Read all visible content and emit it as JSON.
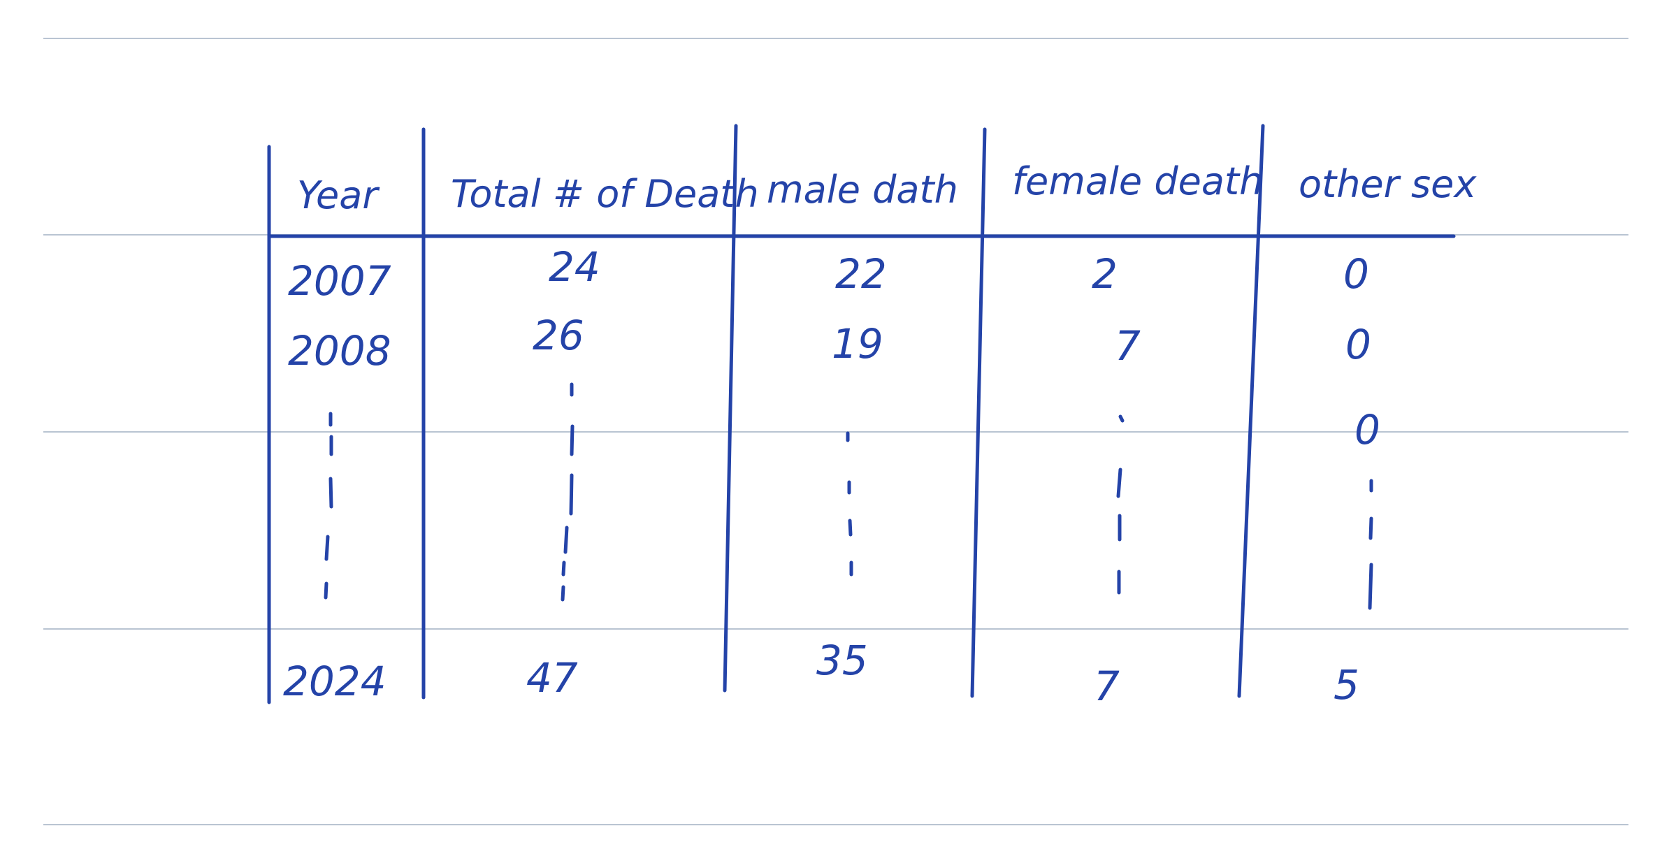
{
  "table": {
    "headers": [
      "Year",
      "Total # of Death",
      "male dath",
      "female death",
      "other sex"
    ],
    "rows": [
      [
        "2007",
        "24",
        "22",
        "2",
        "0"
      ],
      [
        "2008",
        "26",
        "19",
        "7",
        "0"
      ],
      [
        "",
        "",
        "",
        "",
        "0"
      ],
      [
        "2024",
        "47",
        "35",
        "7",
        "5"
      ]
    ]
  },
  "colors": {
    "ink": "#2443a8",
    "ruled_line": "#b9c4d2",
    "paper": "#ffffff"
  }
}
